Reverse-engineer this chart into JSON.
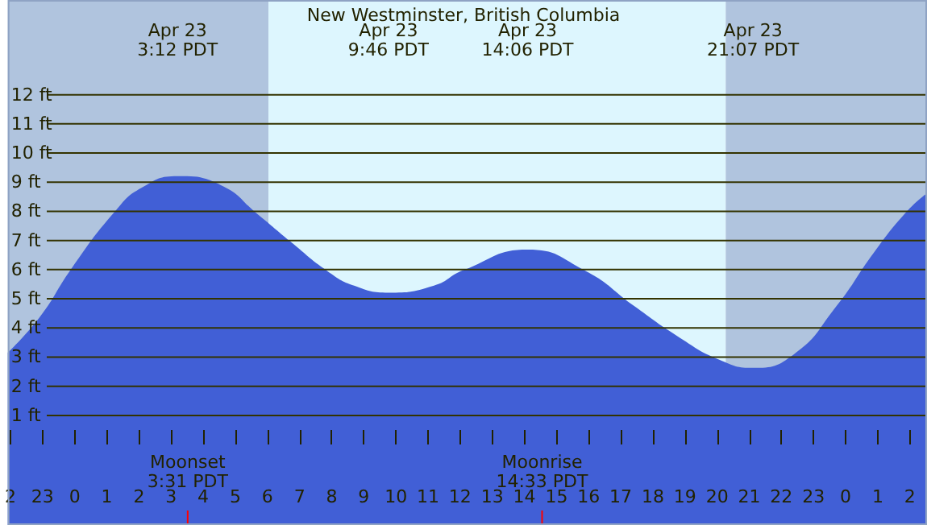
{
  "chart_data": {
    "type": "area",
    "title": "New Westminster, British Columbia",
    "color": "#415fd6",
    "x": [
      "--04-22T21:55",
      "--04-22T22:55",
      "--04-22T23:54",
      "--04-23T01:14",
      "--04-23T02:04",
      "--04-23T03:12",
      "--04-23T04:33",
      "--04-23T05:43",
      "--04-23T06:43",
      "--04-23T07:52",
      "--04-23T08:42",
      "--04-23T09:46",
      "--04-23T11:11",
      "--04-23T12:06",
      "--04-23T14:06",
      "--04-23T15:55",
      "--04-23T17:25",
      "--04-23T18:44",
      "--04-23T20:04",
      "--04-23T21:07",
      "--04-23T22:23",
      "--04-23T23:43",
      "--04-24T00:53",
      "--04-24T01:53",
      "--04-24T02:32"
    ],
    "values": [
      3.15,
      4.38,
      6.04,
      7.97,
      8.8,
      9.21,
      8.9,
      7.88,
      6.96,
      5.95,
      5.45,
      5.21,
      5.45,
      5.98,
      6.69,
      5.95,
      4.75,
      3.74,
      2.91,
      2.63,
      3.09,
      4.75,
      6.59,
      7.97,
      8.62
    ],
    "xlim": [
      "--04-22T21:55",
      "--04-24T02:32"
    ],
    "ylim": [
      -2.76,
      15.25
    ],
    "xticks": [
      {
        "value": "--04-22T22:00",
        "label": "2"
      },
      {
        "value": "--04-22T23:00",
        "label": "23"
      },
      {
        "value": "--04-23T00:00",
        "label": "0"
      },
      {
        "value": "--04-23T01:00",
        "label": "1"
      },
      {
        "value": "--04-23T02:00",
        "label": "2"
      },
      {
        "value": "--04-23T03:00",
        "label": "3"
      },
      {
        "value": "--04-23T04:00",
        "label": "4"
      },
      {
        "value": "--04-23T05:00",
        "label": "5"
      },
      {
        "value": "--04-23T06:00",
        "label": "6"
      },
      {
        "value": "--04-23T07:00",
        "label": "7"
      },
      {
        "value": "--04-23T08:00",
        "label": "8"
      },
      {
        "value": "--04-23T09:00",
        "label": "9"
      },
      {
        "value": "--04-23T10:00",
        "label": "10"
      },
      {
        "value": "--04-23T11:00",
        "label": "11"
      },
      {
        "value": "--04-23T12:00",
        "label": "12"
      },
      {
        "value": "--04-23T13:00",
        "label": "13"
      },
      {
        "value": "--04-23T14:00",
        "label": "14"
      },
      {
        "value": "--04-23T15:00",
        "label": "15"
      },
      {
        "value": "--04-23T16:00",
        "label": "16"
      },
      {
        "value": "--04-23T17:00",
        "label": "17"
      },
      {
        "value": "--04-23T18:00",
        "label": "18"
      },
      {
        "value": "--04-23T19:00",
        "label": "19"
      },
      {
        "value": "--04-23T20:00",
        "label": "20"
      },
      {
        "value": "--04-23T21:00",
        "label": "21"
      },
      {
        "value": "--04-23T22:00",
        "label": "22"
      },
      {
        "value": "--04-23T23:00",
        "label": "23"
      },
      {
        "value": "--04-24T00:00",
        "label": "0"
      },
      {
        "value": "--04-24T01:00",
        "label": "1"
      },
      {
        "value": "--04-24T02:00",
        "label": "2"
      }
    ],
    "yticks": [
      {
        "value": 1,
        "label": "1 ft"
      },
      {
        "value": 2,
        "label": "2 ft"
      },
      {
        "value": 3,
        "label": "3 ft"
      },
      {
        "value": 4,
        "label": "4 ft"
      },
      {
        "value": 5,
        "label": "5 ft"
      },
      {
        "value": 6,
        "label": "6 ft"
      },
      {
        "value": 7,
        "label": "7 ft"
      },
      {
        "value": 8,
        "label": "8 ft"
      },
      {
        "value": 9,
        "label": "9 ft"
      },
      {
        "value": 10,
        "label": "10 ft"
      },
      {
        "value": 11,
        "label": "11 ft"
      },
      {
        "value": 12,
        "label": "12 ft"
      }
    ],
    "grid": "y",
    "bands": [
      {
        "axis": "x",
        "from": "--04-22T21:55",
        "to": "--04-23T06:02",
        "color": "#b0c4de"
      },
      {
        "axis": "x",
        "from": "--04-23T06:02",
        "to": "--04-23T20:16",
        "color": "#ddf6fe"
      },
      {
        "axis": "x",
        "from": "--04-23T20:16",
        "to": "--04-24T02:32",
        "color": "#b0c4de"
      }
    ],
    "annotations": [
      "Apr 23\n3:12 PDT",
      "Apr 23\n9:46 PDT",
      "Apr 23\n14:06 PDT",
      "Apr 23\n21:07 PDT",
      {
        "text": "Moonset\n3:31 PDT",
        "x": "--04-23T03:31",
        "y": -2.5
      },
      {
        "text": "Moonrise\n14:33 PDT",
        "x": "--04-23T14:33",
        "y": -2.5
      }
    ]
  }
}
